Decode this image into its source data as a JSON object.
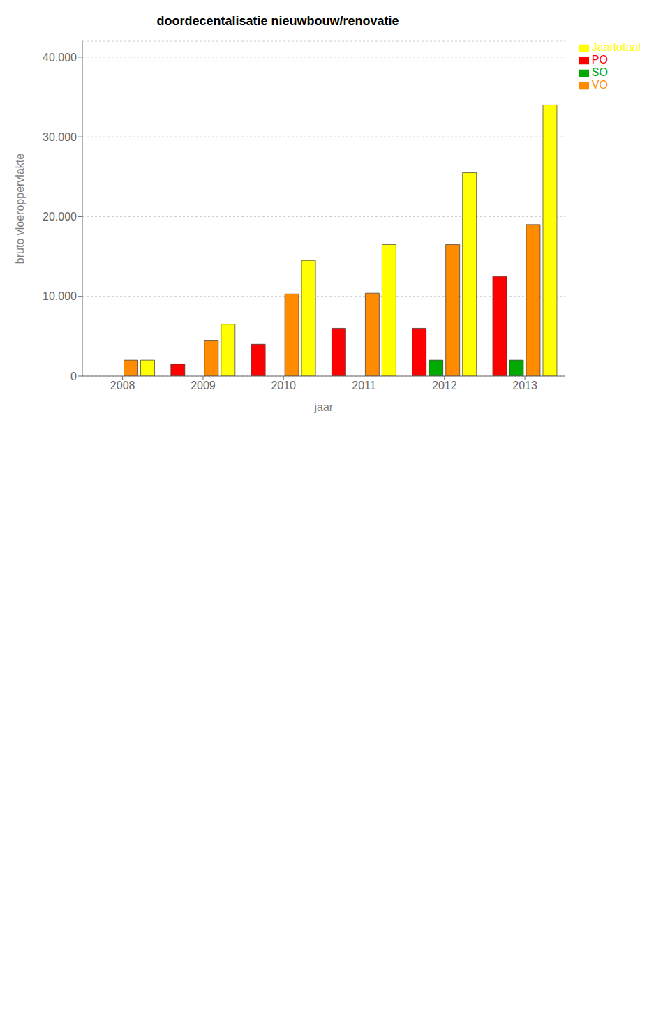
{
  "chart_data": {
    "type": "bar",
    "title": "doordecentalisatie nieuwbouw/renovatie",
    "x_label": "jaar",
    "y_label": "bruto vloeroppervlakte",
    "categories": [
      "2008",
      "2009",
      "2010",
      "2011",
      "2012",
      "2013"
    ],
    "series": [
      {
        "name": "PO",
        "color": "#FF0000",
        "values": [
          0,
          1500,
          4000,
          6000,
          6000,
          12500
        ]
      },
      {
        "name": "SO",
        "color": "#00AA00",
        "values": [
          0,
          0,
          0,
          0,
          2000,
          2000
        ]
      },
      {
        "name": "VO",
        "color": "#FF8C00",
        "values": [
          2000,
          4500,
          10300,
          10400,
          16500,
          19000
        ]
      },
      {
        "name": "Jaartotaal",
        "color": "#FFFF00",
        "values": [
          2000,
          6500,
          14500,
          16500,
          25500,
          34000
        ]
      }
    ],
    "ylim": [
      0,
      42000
    ],
    "yticks": [
      0,
      {
        "value": 10000,
        "label": "10.000"
      },
      {
        "value": 20000,
        "label": "20.000"
      },
      {
        "value": 30000,
        "label": "30.000"
      },
      {
        "value": 40000,
        "label": "40.000"
      }
    ],
    "grid": "y",
    "legend": "right"
  }
}
